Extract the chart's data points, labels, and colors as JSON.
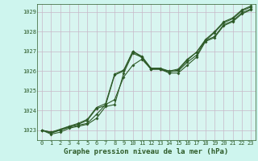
{
  "title": "Graphe pression niveau de la mer (hPa)",
  "bg_color": "#cef5ee",
  "plot_bg_color": "#d8f5f0",
  "line_color": "#2d5a27",
  "grid_color": "#c8b8c8",
  "x_values": [
    0,
    1,
    2,
    3,
    4,
    5,
    6,
    7,
    8,
    9,
    10,
    11,
    12,
    13,
    14,
    15,
    16,
    17,
    18,
    19,
    20,
    21,
    22,
    23
  ],
  "series": [
    [
      1023.0,
      1022.8,
      1022.9,
      1023.1,
      1023.2,
      1023.3,
      1023.6,
      1024.2,
      1024.3,
      1025.9,
      1026.9,
      1026.7,
      1026.1,
      1026.1,
      1025.9,
      1025.9,
      1026.3,
      1026.7,
      1027.5,
      1027.7,
      1028.3,
      1028.5,
      1028.9,
      1029.1
    ],
    [
      1023.0,
      1022.85,
      1023.0,
      1023.15,
      1023.25,
      1023.35,
      1023.8,
      1024.3,
      1024.55,
      1025.7,
      1026.3,
      1026.6,
      1026.1,
      1026.1,
      1026.0,
      1026.0,
      1026.45,
      1026.8,
      1027.55,
      1027.75,
      1028.35,
      1028.55,
      1028.95,
      1029.15
    ],
    [
      1023.0,
      1022.9,
      1023.0,
      1023.2,
      1023.3,
      1023.5,
      1024.1,
      1024.25,
      1025.8,
      1026.0,
      1027.0,
      1026.7,
      1026.1,
      1026.1,
      1025.95,
      1026.05,
      1026.55,
      1026.95,
      1027.55,
      1027.95,
      1028.45,
      1028.65,
      1029.05,
      1029.25
    ],
    [
      1023.0,
      1022.9,
      1023.05,
      1023.2,
      1023.35,
      1023.55,
      1024.15,
      1024.35,
      1025.85,
      1026.05,
      1027.0,
      1026.75,
      1026.15,
      1026.15,
      1026.0,
      1026.1,
      1026.6,
      1026.95,
      1027.6,
      1028.0,
      1028.5,
      1028.7,
      1029.1,
      1029.3
    ]
  ],
  "ylim": [
    1022.5,
    1029.4
  ],
  "yticks": [
    1023,
    1024,
    1025,
    1026,
    1027,
    1028,
    1029
  ],
  "xlim": [
    -0.5,
    23.5
  ],
  "xticks": [
    0,
    1,
    2,
    3,
    4,
    5,
    6,
    7,
    8,
    9,
    10,
    11,
    12,
    13,
    14,
    15,
    16,
    17,
    18,
    19,
    20,
    21,
    22,
    23
  ],
  "marker": "D",
  "marker_size": 2.0,
  "linewidth": 0.8,
  "title_fontsize": 6.5,
  "tick_fontsize": 5.0
}
